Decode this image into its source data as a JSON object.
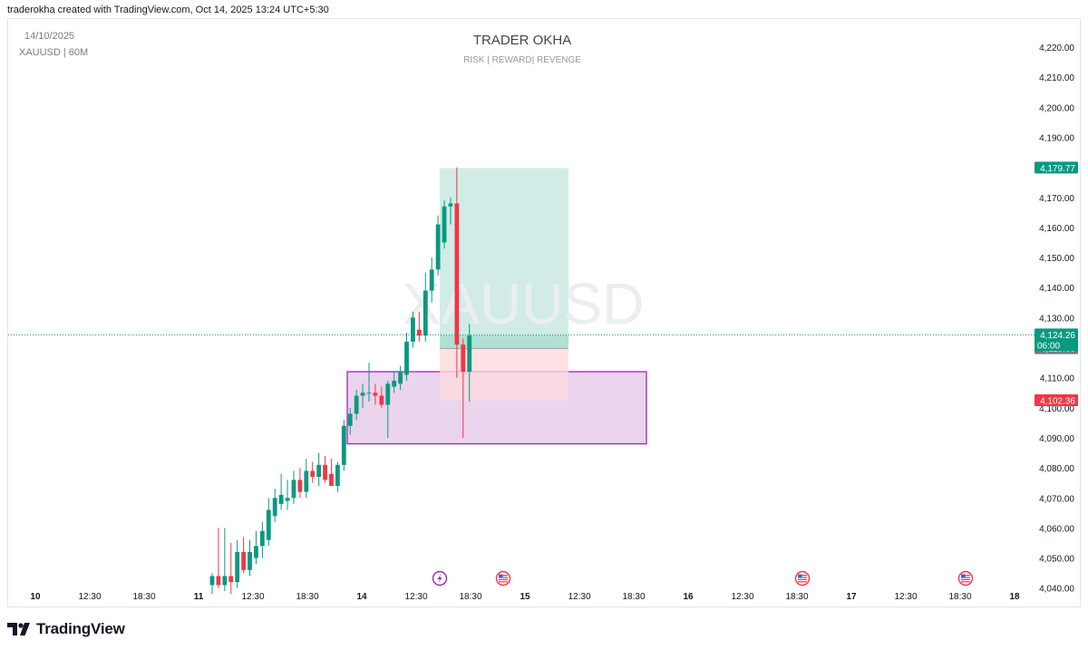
{
  "header": {
    "caption": "traderokha created with TradingView.com, Oct 14, 2025 13:24 UTC+5:30"
  },
  "chart_info": {
    "date": "14/10/2025",
    "symbol_interval": "XAUUSD | 60M",
    "title": "TRADER OKHA",
    "subtitle": "RISK | REWARD| REVENGE",
    "watermark": "XAUUSD"
  },
  "price_labels": {
    "target": {
      "value": "4,179.77",
      "color": "#089981"
    },
    "current": {
      "value": "4,124.26",
      "sub": "06:00",
      "color": "#089981"
    },
    "entry": {
      "value": "4,119.66",
      "color": "#787b86"
    },
    "stop": {
      "value": "4,102.36",
      "color": "#f23645"
    }
  },
  "logo": {
    "text": "TradingView"
  },
  "chart_data": {
    "type": "candlestick",
    "symbol": "XAUUSD",
    "interval": "60M",
    "ylim": [
      4040,
      4225
    ],
    "y_ticks": [
      4040,
      4050,
      4060,
      4070,
      4080,
      4090,
      4100,
      4110,
      4120,
      4130,
      4140,
      4150,
      4160,
      4170,
      4180,
      4190,
      4200,
      4210,
      4220
    ],
    "x_tick_labels": [
      {
        "label": "10",
        "bold": true
      },
      {
        "label": "12:30",
        "bold": false
      },
      {
        "label": "18:30",
        "bold": false
      },
      {
        "label": "11",
        "bold": true
      },
      {
        "label": "12:30",
        "bold": false
      },
      {
        "label": "18:30",
        "bold": false
      },
      {
        "label": "14",
        "bold": true
      },
      {
        "label": "12:30",
        "bold": false
      },
      {
        "label": "18:30",
        "bold": false
      },
      {
        "label": "15",
        "bold": true
      },
      {
        "label": "12:30",
        "bold": false
      },
      {
        "label": "18:30",
        "bold": false
      },
      {
        "label": "16",
        "bold": true
      },
      {
        "label": "12:30",
        "bold": false
      },
      {
        "label": "18:30",
        "bold": false
      },
      {
        "label": "17",
        "bold": true
      },
      {
        "label": "12:30",
        "bold": false
      },
      {
        "label": "18:30",
        "bold": false
      },
      {
        "label": "18",
        "bold": true
      }
    ],
    "candles": [
      {
        "o": 4041,
        "h": 4045,
        "l": 4038,
        "c": 4044
      },
      {
        "o": 4044,
        "h": 4060,
        "l": 4040,
        "c": 4041
      },
      {
        "o": 4041,
        "h": 4060,
        "l": 4039,
        "c": 4044
      },
      {
        "o": 4044,
        "h": 4055,
        "l": 4038,
        "c": 4042
      },
      {
        "o": 4042,
        "h": 4056,
        "l": 4040,
        "c": 4052
      },
      {
        "o": 4052,
        "h": 4057,
        "l": 4045,
        "c": 4046
      },
      {
        "o": 4046,
        "h": 4056,
        "l": 4044,
        "c": 4052
      },
      {
        "o": 4050,
        "h": 4059,
        "l": 4048,
        "c": 4054
      },
      {
        "o": 4054,
        "h": 4062,
        "l": 4050,
        "c": 4059
      },
      {
        "o": 4056,
        "h": 4070,
        "l": 4054,
        "c": 4066
      },
      {
        "o": 4064,
        "h": 4073,
        "l": 4062,
        "c": 4070
      },
      {
        "o": 4068,
        "h": 4078,
        "l": 4066,
        "c": 4071
      },
      {
        "o": 4069,
        "h": 4076,
        "l": 4066,
        "c": 4070
      },
      {
        "o": 4070,
        "h": 4079,
        "l": 4068,
        "c": 4076
      },
      {
        "o": 4076,
        "h": 4080,
        "l": 4070,
        "c": 4072
      },
      {
        "o": 4072,
        "h": 4083,
        "l": 4070,
        "c": 4079
      },
      {
        "o": 4079,
        "h": 4082,
        "l": 4075,
        "c": 4077
      },
      {
        "o": 4077,
        "h": 4085,
        "l": 4074,
        "c": 4081
      },
      {
        "o": 4081,
        "h": 4084,
        "l": 4075,
        "c": 4076
      },
      {
        "o": 4078,
        "h": 4083,
        "l": 4074,
        "c": 4074
      },
      {
        "o": 4074,
        "h": 4082,
        "l": 4072,
        "c": 4081
      },
      {
        "o": 4081,
        "h": 4096,
        "l": 4079,
        "c": 4094
      },
      {
        "o": 4094,
        "h": 4100,
        "l": 4091,
        "c": 4098
      },
      {
        "o": 4098,
        "h": 4106,
        "l": 4096,
        "c": 4104
      },
      {
        "o": 4104,
        "h": 4108,
        "l": 4100,
        "c": 4105
      },
      {
        "o": 4105,
        "h": 4115,
        "l": 4102,
        "c": 4105
      },
      {
        "o": 4105,
        "h": 4108,
        "l": 4101,
        "c": 4104
      },
      {
        "o": 4104,
        "h": 4107,
        "l": 4100,
        "c": 4101
      },
      {
        "o": 4101,
        "h": 4109,
        "l": 4090,
        "c": 4108
      },
      {
        "o": 4107,
        "h": 4112,
        "l": 4105,
        "c": 4109
      },
      {
        "o": 4108,
        "h": 4114,
        "l": 4106,
        "c": 4112
      },
      {
        "o": 4111,
        "h": 4125,
        "l": 4109,
        "c": 4122
      },
      {
        "o": 4122,
        "h": 4132,
        "l": 4120,
        "c": 4130
      },
      {
        "o": 4126,
        "h": 4132,
        "l": 4122,
        "c": 4124
      },
      {
        "o": 4124,
        "h": 4145,
        "l": 4122,
        "c": 4139
      },
      {
        "o": 4139,
        "h": 4150,
        "l": 4135,
        "c": 4146
      },
      {
        "o": 4146,
        "h": 4164,
        "l": 4144,
        "c": 4161
      },
      {
        "o": 4155,
        "h": 4169,
        "l": 4153,
        "c": 4167
      },
      {
        "o": 4167,
        "h": 4170,
        "l": 4161,
        "c": 4168
      },
      {
        "o": 4168,
        "h": 4180,
        "l": 4110,
        "c": 4121
      },
      {
        "o": 4121,
        "h": 4123,
        "l": 4090,
        "c": 4112
      },
      {
        "o": 4112,
        "h": 4128,
        "l": 4102,
        "c": 4124
      }
    ],
    "position": {
      "type": "long",
      "entry": 4119.66,
      "target": 4179.77,
      "stop": 4102.36,
      "current": 4124.26
    },
    "demand_zone": {
      "top": 4112,
      "bottom": 4088
    },
    "event_markers": [
      "lightning",
      "us-flag",
      "us-flag",
      "us-flag"
    ],
    "colors": {
      "up": "#089981",
      "down": "#f23645",
      "zone": "#9c27b0",
      "target_fill": "#d1ece6",
      "stop_fill": "#fcd9df"
    }
  }
}
